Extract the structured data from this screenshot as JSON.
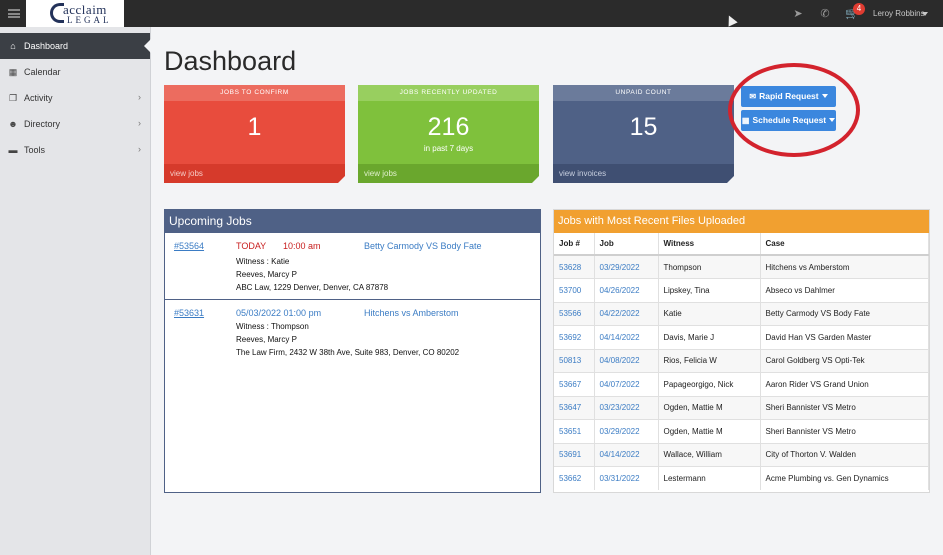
{
  "app": {
    "logo_top": "acclaim",
    "logo_bottom": "LEGAL",
    "user_name": "Leroy Robbins",
    "cart_count": "4"
  },
  "sidebar": {
    "items": [
      {
        "label": "Dashboard",
        "icon": "home-icon",
        "active": true
      },
      {
        "label": "Calendar",
        "icon": "calendar-icon"
      },
      {
        "label": "Activity",
        "icon": "copy-icon"
      },
      {
        "label": "Directory",
        "icon": "users-icon"
      },
      {
        "label": "Tools",
        "icon": "folder-icon"
      }
    ]
  },
  "page": {
    "title": "Dashboard"
  },
  "stats": [
    {
      "title": "JOBS TO CONFIRM",
      "value": "1",
      "sub": "",
      "footer": "view jobs",
      "color": "#e84c3d"
    },
    {
      "title": "JOBS RECENTLY UPDATED",
      "value": "216",
      "sub": "in past 7 days",
      "footer": "view jobs",
      "color": "#7fc13c"
    },
    {
      "title": "UNPAID COUNT",
      "value": "15",
      "sub": "",
      "footer": "view invoices",
      "color": "#4f6186"
    }
  ],
  "actions": {
    "rapid": "Rapid Request",
    "schedule": "Schedule Request"
  },
  "upcoming": {
    "title": "Upcoming Jobs",
    "jobs": [
      {
        "id": "#53564",
        "date": "TODAY",
        "time": "10:00 am",
        "case": "Betty Carmody VS Body Fate",
        "witness": "Witness : Katie",
        "attorney": "Reeves, Marcy P",
        "location": "ABC Law, 1229 Denver, Denver, CA 87878"
      },
      {
        "id": "#53631",
        "date": "05/03/2022 01:00 pm",
        "time": "",
        "case": "Hitchens vs Amberstom",
        "witness": "Witness : Thompson",
        "attorney": "Reeves, Marcy P",
        "location": "The Law Firm, 2432 W 38th Ave, Suite 983, Denver, CO 80202"
      }
    ]
  },
  "recent_files": {
    "title": "Jobs with Most Recent Files Uploaded",
    "columns": [
      "Job #",
      "Job",
      "Witness",
      "Case"
    ],
    "rows": [
      [
        "53628",
        "03/29/2022",
        "Thompson",
        "Hitchens vs Amberstom"
      ],
      [
        "53700",
        "04/26/2022",
        "Lipskey, Tina",
        "Abseco vs Dahlmer"
      ],
      [
        "53566",
        "04/22/2022",
        "Katie",
        "Betty Carmody VS Body Fate"
      ],
      [
        "53692",
        "04/14/2022",
        "Davis, Marie J",
        "David Han VS Garden Master"
      ],
      [
        "50813",
        "04/08/2022",
        "Rios, Felicia W",
        "Carol Goldberg VS Opti-Tek"
      ],
      [
        "53667",
        "04/07/2022",
        "Papageorgigo, Nick",
        "Aaron Rider VS Grand Union"
      ],
      [
        "53647",
        "03/23/2022",
        "Ogden, Mattie M",
        "Sheri Bannister VS Metro"
      ],
      [
        "53651",
        "03/29/2022",
        "Ogden, Mattie M",
        "Sheri Bannister VS Metro"
      ],
      [
        "53691",
        "04/14/2022",
        "Wallace, William",
        "City of Thorton V. Walden"
      ],
      [
        "53662",
        "03/31/2022",
        "Lestermann",
        "Acme Plumbing vs. Gen Dynamics"
      ]
    ]
  },
  "colors": {
    "accent": "#3b87de",
    "highlight_circle": "#d3232d",
    "orange": "#f1a030"
  }
}
